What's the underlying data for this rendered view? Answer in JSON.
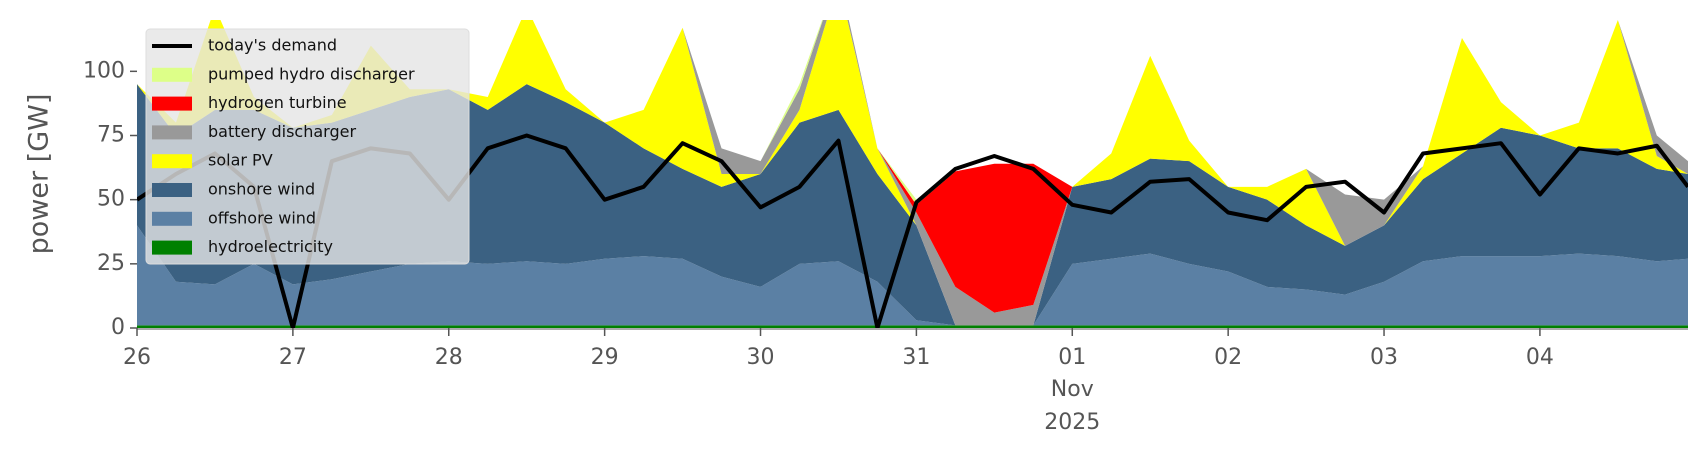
{
  "chart_data": {
    "type": "area",
    "ylabel": "power [GW]",
    "xlim": [
      0,
      9.95
    ],
    "ylim": [
      0,
      120
    ],
    "yticks": [
      0,
      25,
      50,
      75,
      100
    ],
    "xticks": [
      {
        "value": 0,
        "label": "26"
      },
      {
        "value": 1,
        "label": "27"
      },
      {
        "value": 2,
        "label": "28"
      },
      {
        "value": 3,
        "label": "29"
      },
      {
        "value": 4,
        "label": "30"
      },
      {
        "value": 5,
        "label": "31"
      },
      {
        "value": 6,
        "label": "01",
        "month": "Nov",
        "year": "2025"
      },
      {
        "value": 7,
        "label": "02"
      },
      {
        "value": 8,
        "label": "03"
      },
      {
        "value": 9,
        "label": "04"
      }
    ],
    "grid": false,
    "legend": "upper left",
    "x": [
      0,
      0.25,
      0.5,
      0.75,
      1,
      1.25,
      1.5,
      1.75,
      2,
      2.25,
      2.5,
      2.75,
      3,
      3.25,
      3.5,
      3.75,
      4,
      4.25,
      4.5,
      4.75,
      5,
      5.25,
      5.5,
      5.75,
      6,
      6.25,
      6.5,
      6.75,
      7,
      7.25,
      7.5,
      7.75,
      8,
      8.25,
      8.5,
      8.75,
      9,
      9.25,
      9.5,
      9.75,
      9.95
    ],
    "series": [
      {
        "name": "today's demand",
        "type": "line",
        "color": "#000000",
        "values": [
          50,
          60,
          68,
          55,
          0,
          65,
          70,
          68,
          50,
          70,
          75,
          70,
          50,
          55,
          72,
          65,
          47,
          55,
          73,
          0,
          49,
          62,
          67,
          62,
          48,
          45,
          57,
          58,
          45,
          42,
          55,
          57,
          45,
          68,
          70,
          72,
          52,
          70,
          68,
          71,
          55
        ]
      },
      {
        "name": "pumped hydro discharger",
        "type": "area",
        "color": "#ddff88",
        "values": [
          0,
          0,
          0,
          0,
          0,
          0,
          0,
          0,
          0,
          0,
          0,
          0,
          0,
          0,
          0,
          0,
          0,
          2,
          0,
          0,
          2,
          0,
          0,
          0,
          0,
          0,
          0,
          0,
          0,
          0,
          0,
          0,
          0,
          0,
          0,
          0,
          0,
          0,
          0,
          0,
          0
        ]
      },
      {
        "name": "hydrogen turbine",
        "type": "area",
        "color": "#ff0000",
        "values": [
          0,
          0,
          0,
          0,
          0,
          0,
          0,
          0,
          0,
          0,
          0,
          0,
          0,
          0,
          0,
          0,
          0,
          0,
          0,
          0,
          3,
          45,
          58,
          55,
          0,
          0,
          0,
          0,
          0,
          0,
          0,
          0,
          0,
          0,
          0,
          0,
          0,
          0,
          0,
          0,
          0
        ]
      },
      {
        "name": "battery discharger",
        "type": "area",
        "color": "#999999",
        "values": [
          0,
          0,
          0,
          0,
          0,
          0,
          0,
          0,
          0,
          0,
          0,
          0,
          0,
          0,
          0,
          10,
          5,
          8,
          3,
          0,
          5,
          15,
          5,
          8,
          0,
          0,
          0,
          0,
          0,
          0,
          0,
          20,
          10,
          0,
          0,
          0,
          0,
          0,
          0,
          8,
          5
        ]
      },
      {
        "name": "solar PV",
        "type": "area",
        "color": "#ffff00",
        "values": [
          0,
          5,
          40,
          5,
          0,
          3,
          25,
          3,
          0,
          5,
          30,
          5,
          0,
          15,
          55,
          5,
          0,
          5,
          50,
          10,
          0,
          0,
          0,
          0,
          0,
          10,
          40,
          8,
          0,
          5,
          22,
          0,
          0,
          5,
          45,
          10,
          0,
          10,
          50,
          5,
          0
        ]
      },
      {
        "name": "onshore wind",
        "type": "area",
        "color": "#3b6182",
        "values": [
          55,
          57,
          68,
          60,
          61,
          61,
          63,
          65,
          67,
          60,
          69,
          63,
          53,
          42,
          35,
          35,
          44,
          55,
          59,
          42,
          37,
          0,
          0,
          0,
          30,
          31,
          37,
          40,
          33,
          34,
          25,
          19,
          22,
          32,
          40,
          50,
          47,
          41,
          42,
          36,
          33
        ]
      },
      {
        "name": "offshore wind",
        "type": "area",
        "color": "#5b80a4",
        "values": [
          39,
          17,
          16,
          24,
          16,
          18,
          21,
          24,
          25,
          24,
          25,
          24,
          26,
          27,
          26,
          19,
          15,
          24,
          25,
          17,
          2,
          0,
          0,
          0,
          24,
          26,
          28,
          24,
          21,
          15,
          14,
          12,
          17,
          25,
          27,
          27,
          27,
          28,
          27,
          25,
          26
        ]
      },
      {
        "name": "hydroelectricity",
        "type": "area",
        "color": "#008000",
        "values": [
          1,
          1,
          1,
          1,
          1,
          1,
          1,
          1,
          1,
          1,
          1,
          1,
          1,
          1,
          1,
          1,
          1,
          1,
          1,
          1,
          1,
          1,
          1,
          1,
          1,
          1,
          1,
          1,
          1,
          1,
          1,
          1,
          1,
          1,
          1,
          1,
          1,
          1,
          1,
          1,
          1
        ]
      }
    ]
  }
}
